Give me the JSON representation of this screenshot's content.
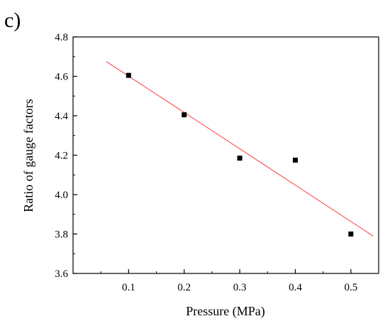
{
  "panel_label": "c)",
  "chart_data": {
    "type": "scatter",
    "title": "",
    "xlabel": "Pressure (MPa)",
    "ylabel": "Ratio of gauge factors",
    "xlim": [
      0.0,
      0.55
    ],
    "ylim": [
      3.6,
      4.8
    ],
    "xticks": [
      0.1,
      0.2,
      0.3,
      0.4,
      0.5
    ],
    "yticks": [
      3.6,
      3.8,
      4.0,
      4.2,
      4.4,
      4.6,
      4.8
    ],
    "xtick_labels": [
      "0.1",
      "0.2",
      "0.3",
      "0.4",
      "0.5"
    ],
    "ytick_labels": [
      "3.6",
      "3.8",
      "4.0",
      "4.2",
      "4.4",
      "4.6",
      "4.8"
    ],
    "grid": false,
    "series": [
      {
        "kind": "points",
        "marker": "square",
        "color": "#000000",
        "x": [
          0.1,
          0.2,
          0.3,
          0.4,
          0.5
        ],
        "y": [
          4.605,
          4.405,
          4.185,
          4.175,
          3.8
        ]
      },
      {
        "kind": "fit-line",
        "color": "#ff3b3b",
        "x": [
          0.06,
          0.54
        ],
        "y": [
          4.675,
          3.79
        ]
      }
    ]
  }
}
